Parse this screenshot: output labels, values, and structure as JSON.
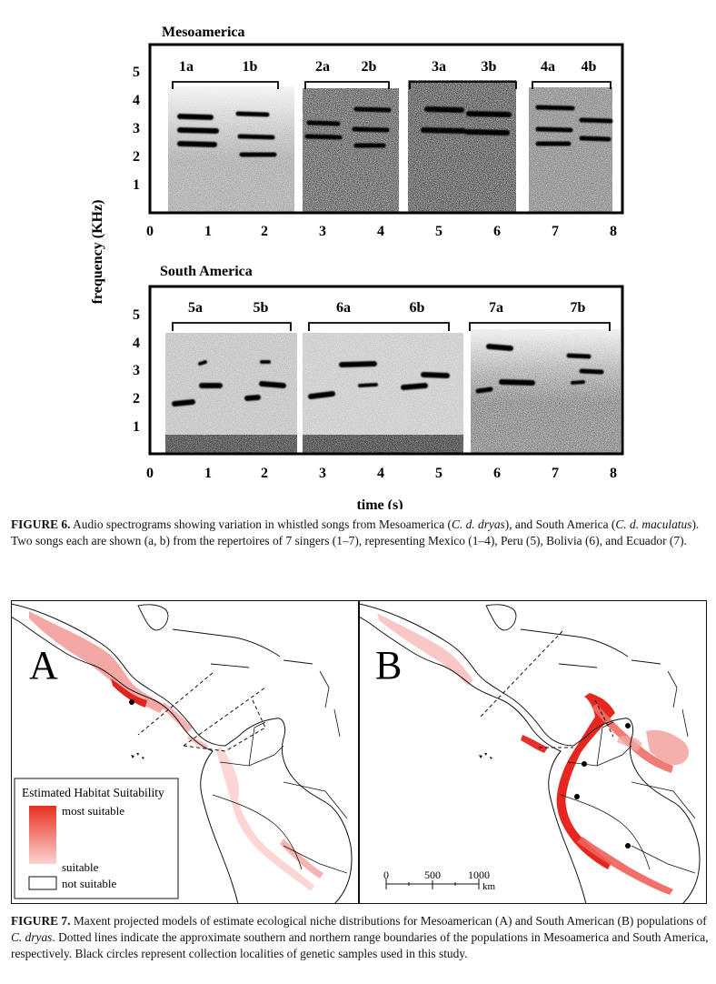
{
  "figure6": {
    "panel_top_title": "Mesoamerica",
    "panel_bottom_title": "South America",
    "ylabel": "frequency (KHz)",
    "xlabel": "time (s)",
    "y_ticks": [
      "1",
      "2",
      "3",
      "4",
      "5"
    ],
    "x_ticks": [
      "0",
      "1",
      "2",
      "3",
      "4",
      "5",
      "6",
      "7",
      "8"
    ],
    "top_song_labels": [
      "1a",
      "1b",
      "2a",
      "2b",
      "3a",
      "3b",
      "4a",
      "4b"
    ],
    "bottom_song_labels": [
      "5a",
      "5b",
      "6a",
      "6b",
      "7a",
      "7b"
    ],
    "caption": {
      "label": "FIGURE 6.",
      "t1": " Audio spectrograms showing variation in whistled songs from Mesoamerica (",
      "i1": "C. d. dryas",
      "t2": "), and South America (",
      "i2": "C. d. maculatus",
      "t3": "). Two songs each are shown (a, b) from the repertoires of 7 singers (1–7), representing Mexico (1–4), Peru (5), Bolivia (6), and Ecuador (7)."
    }
  },
  "figure7": {
    "panel_a": "A",
    "panel_b": "B",
    "legend": {
      "title": "Estimated Habitat Suitability",
      "most": "most suitable",
      "suitable": "suitable",
      "not": "not suitable"
    },
    "scale": {
      "t0": "0",
      "t1": "500",
      "t2": "1000",
      "unit": "km"
    },
    "caption": {
      "label": "FIGURE 7.",
      "t1": " Maxent projected models of estimate ecological niche distributions for Mesoamerican (A) and South American (B) populations of ",
      "i1": "C. dryas",
      "t2": ". Dotted lines indicate the approximate southern and northern range boundaries of the populations in Mesoamerica and South America, respectively. Black circles represent collection localities of genetic samples used in this study."
    }
  }
}
